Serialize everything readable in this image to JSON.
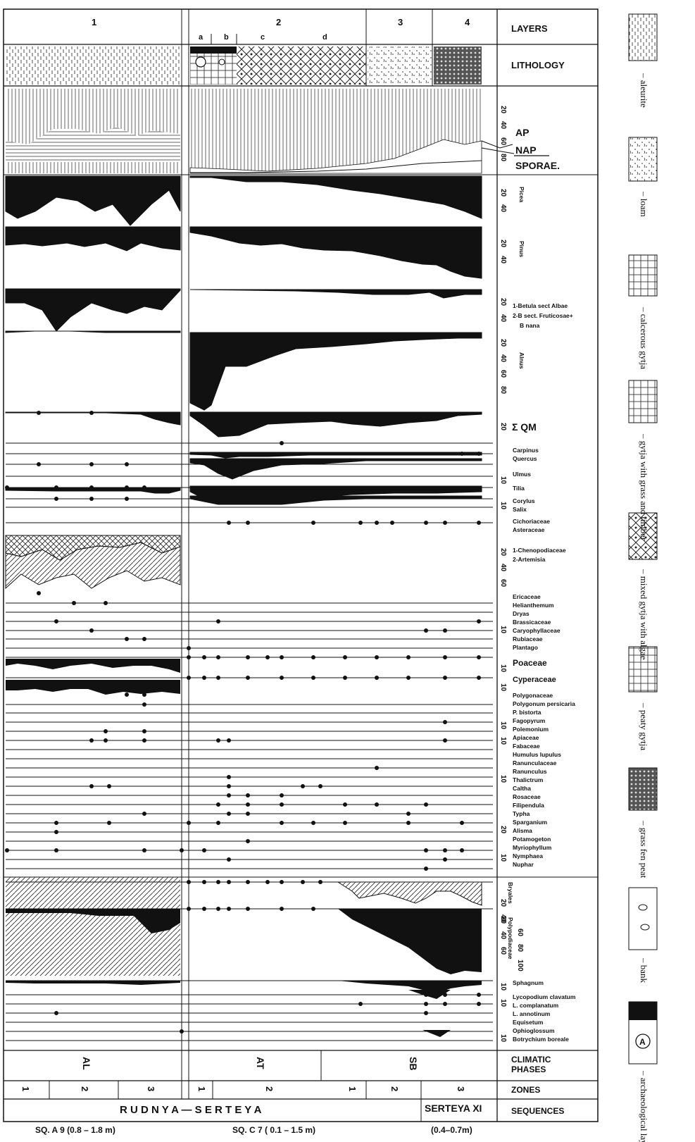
{
  "column_headers": {
    "c1": "1",
    "c2": "2",
    "c3": "3",
    "c4": "4",
    "sub": [
      "a",
      "b",
      "c",
      "d"
    ]
  },
  "row_labels": {
    "layers": "LAYERS",
    "lithology": "LITHOLOGY",
    "climatic_phases": "CLIMATIC PHASES",
    "climatic_1": "CLIMATIC",
    "climatic_2": "PHASES",
    "zones": "ZONES",
    "sequences": "SEQUENCES"
  },
  "summary_labels": {
    "ap": "AP",
    "nap": "NAP",
    "sporae": "SPORAE."
  },
  "taxa_labels": {
    "picea": "Picea",
    "pinus": "Pinus",
    "betula_1": "1-Betula sect Albae",
    "betula_2": "2-B sect. Fruticosae+",
    "betula_3": "B nana",
    "alnus": "Alnus",
    "qm": "Σ QM",
    "carpinus": "Carpinus",
    "quercus": "Quercus",
    "ulmus": "Ulmus",
    "tilia": "Tilia",
    "corylus": "Corylus",
    "salix": "Salix",
    "cichoriaceae": "Cichoriaceae",
    "asteraceae": "Asteraceae",
    "chenopodiaceae": "1-Chenopodiaceae",
    "artemisia": "2-Artemisia",
    "ericaceae": "Ericaceae",
    "helianthemum": "Helianthemum",
    "dryas": "Dryas",
    "brassicaceae": "Brassicaceae",
    "caryophyllaceae": "Caryophyllaceae",
    "rubiaceae": "Rubiaceae",
    "plantago": "Plantago",
    "poaceae": "Poaceae",
    "cyperaceae": "Cyperaceae",
    "polygonaceae": "Polygonaceae",
    "polygonum": "Polygonum persicaria",
    "bistorta": "P. bistorta",
    "fagopyrum": "Fagopyrum",
    "polemonium": "Polemonium",
    "apiaceae": "Apiaceae",
    "fabaceae": "Fabaceae",
    "humulus": "Humulus lupulus",
    "ranunculaceae": "Ranunculaceae",
    "ranunculus": "Ranunculus",
    "thalictrum": "Thalictrum",
    "caltha": "Caltha",
    "rosaceae": "Rosaceae",
    "filipendula": "Filipendula",
    "typha": "Typha",
    "sparganium": "Sparganium",
    "alisma": "Alisma",
    "potamogeton": "Potamogeton",
    "myriophyllum": "Myriophyllum",
    "nymphaea": "Nymphaea",
    "nuphar": "Nuphar",
    "bryales": "Bryales",
    "polypodiaceae": "Polypodiaceae",
    "sphagnum": "Sphagnum",
    "lyc_clav": "Lycopodium clavatum",
    "lyc_compl": "L. complanatum",
    "lyc_annot": "L. annotinum",
    "equisetum": "Equisetum",
    "ophioglossum": "Ophioglossum",
    "botrychium": "Botrychium boreale"
  },
  "climatic_phases": [
    "AL",
    "AT",
    "SB"
  ],
  "zones": [
    "1",
    "2",
    "3",
    "1",
    "2",
    "1",
    "2",
    "3"
  ],
  "sequences": {
    "site": "R U D N Y A   —   S E R T E Y A",
    "sample_a": "SQ. A 9  (0.8 – 1.8 m)",
    "sample_c": "SQ. C 7   ( 0.1 – 1.5 m)",
    "site2": "SERTEYA XI",
    "sample_s": "(0.4–0.7m)"
  },
  "legend": [
    {
      "label": "– aleurite",
      "pattern": "aleurite"
    },
    {
      "label": "– loam",
      "pattern": "loam"
    },
    {
      "label": "– calcerous gytja",
      "pattern": "grid"
    },
    {
      "label": "– gytja with grass and timber",
      "pattern": "grid-grass"
    },
    {
      "label": "– mixed gytja with algae",
      "pattern": "grid-algae"
    },
    {
      "label": "– peaty gytja",
      "pattern": "grid-peat"
    },
    {
      "label": "– grass fen peat",
      "pattern": "fen"
    },
    {
      "label": "– bank",
      "pattern": "bank"
    },
    {
      "label": "– archaeological layer",
      "pattern": "arch"
    }
  ]
}
